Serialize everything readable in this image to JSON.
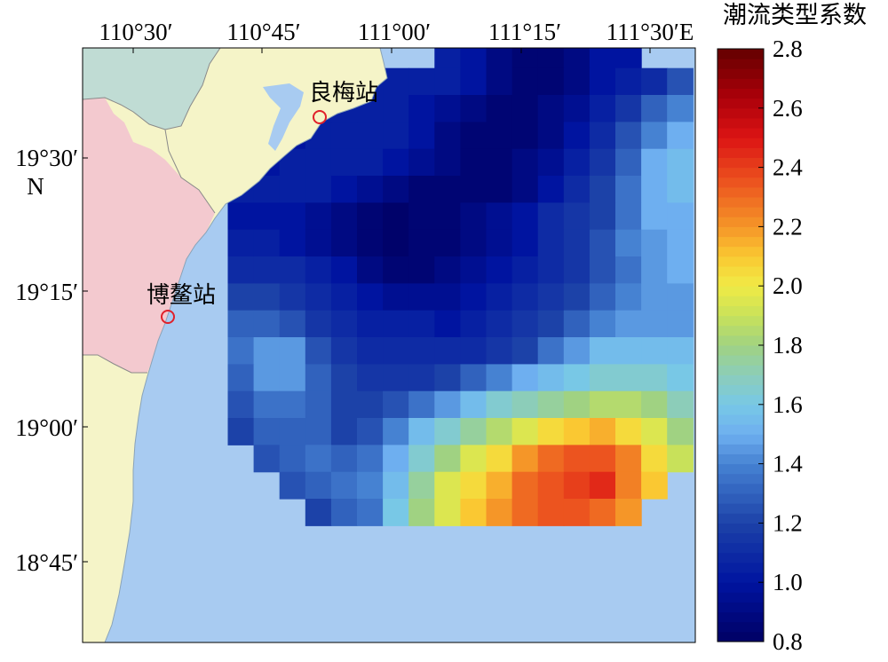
{
  "figure": {
    "colorbar_title": "潮流类型系数",
    "colorbar_ticks": [
      "0.8",
      "1.0",
      "1.2",
      "1.4",
      "1.6",
      "1.8",
      "2.0",
      "2.2",
      "2.4",
      "2.6",
      "2.8"
    ],
    "colorbar_range": [
      0.8,
      2.8
    ],
    "lon_labels": [
      "110°30′",
      "110°45′",
      "111°00′",
      "111°15′",
      "111°30′E"
    ],
    "lat_labels": [
      "19°30′",
      "19°15′",
      "19°00′",
      "18°45′"
    ],
    "lat_axis_letter": "N",
    "stations": [
      {
        "name": "良梅站",
        "lon": 110.77,
        "lat": 19.61
      },
      {
        "name": "博鳌站",
        "lon": 110.62,
        "lat": 19.2
      }
    ],
    "colors": {
      "sea": "#a8cbf1",
      "land_hainan": "#f5f4c8",
      "land_west": "#f3c9cf",
      "land_nw": "#c0dcd4",
      "station": "#e0202a"
    }
  },
  "chart_data": {
    "type": "heatmap",
    "colorbar_title": "潮流类型系数",
    "vmin": 0.8,
    "vmax": 2.8,
    "grid_lon_start": 110.633,
    "grid_lat_top": 19.717,
    "cell_size_deg": 0.05,
    "rows": [
      [
        null,
        null,
        null,
        null,
        null,
        null,
        null,
        null,
        null,
        1.05,
        1.0,
        0.9,
        0.85,
        0.85,
        0.9,
        1.0,
        1.0,
        null,
        null
      ],
      [
        null,
        null,
        null,
        null,
        null,
        null,
        1.05,
        1.05,
        1.05,
        1.05,
        1.0,
        0.9,
        0.85,
        0.85,
        0.9,
        1.0,
        1.05,
        1.1,
        1.25
      ],
      [
        null,
        null,
        null,
        1.0,
        1.05,
        1.05,
        1.05,
        1.05,
        1.0,
        0.95,
        0.9,
        0.85,
        0.85,
        0.9,
        0.95,
        1.05,
        1.15,
        1.3,
        1.4
      ],
      [
        null,
        null,
        null,
        1.0,
        1.05,
        1.05,
        1.05,
        1.05,
        1.0,
        0.9,
        0.85,
        0.85,
        0.85,
        0.9,
        1.0,
        1.1,
        1.25,
        1.4,
        1.5
      ],
      [
        null,
        null,
        1.0,
        1.05,
        1.05,
        1.05,
        1.05,
        1.0,
        0.95,
        0.9,
        0.85,
        0.85,
        0.9,
        0.95,
        1.05,
        1.15,
        1.3,
        1.5,
        1.55
      ],
      [
        null,
        1.05,
        1.05,
        1.05,
        1.05,
        1.0,
        0.95,
        0.9,
        0.85,
        0.85,
        0.85,
        0.85,
        0.9,
        1.0,
        1.1,
        1.2,
        1.35,
        1.5,
        1.55
      ],
      [
        null,
        1.0,
        1.0,
        1.0,
        0.95,
        0.9,
        0.85,
        0.82,
        0.85,
        0.85,
        0.9,
        0.95,
        1.0,
        1.1,
        1.15,
        1.2,
        1.35,
        1.5,
        1.5
      ],
      [
        null,
        1.05,
        1.05,
        1.0,
        0.95,
        0.9,
        0.85,
        0.82,
        0.85,
        0.85,
        0.9,
        0.95,
        1.0,
        1.1,
        1.15,
        1.25,
        1.4,
        1.45,
        1.5
      ],
      [
        null,
        1.1,
        1.1,
        1.1,
        1.05,
        1.0,
        0.9,
        0.85,
        0.85,
        0.9,
        0.95,
        1.0,
        1.05,
        1.1,
        1.15,
        1.25,
        1.35,
        1.45,
        1.5
      ],
      [
        null,
        1.2,
        1.2,
        1.15,
        1.1,
        1.05,
        1.0,
        0.95,
        0.95,
        0.95,
        1.0,
        1.05,
        1.1,
        1.15,
        1.2,
        1.3,
        1.4,
        1.45,
        1.45
      ],
      [
        null,
        1.3,
        1.3,
        1.25,
        1.15,
        1.1,
        1.05,
        1.05,
        1.05,
        1.0,
        1.05,
        1.1,
        1.15,
        1.2,
        1.3,
        1.4,
        1.45,
        1.45,
        1.45
      ],
      [
        null,
        1.35,
        1.45,
        1.45,
        1.25,
        1.15,
        1.1,
        1.1,
        1.1,
        1.1,
        1.1,
        1.15,
        1.2,
        1.35,
        1.45,
        1.55,
        1.55,
        1.55,
        1.55
      ],
      [
        null,
        1.3,
        1.45,
        1.45,
        1.3,
        1.2,
        1.15,
        1.15,
        1.15,
        1.2,
        1.3,
        1.4,
        1.5,
        1.55,
        1.6,
        1.65,
        1.65,
        1.65,
        1.6
      ],
      [
        null,
        1.25,
        1.35,
        1.35,
        1.3,
        1.2,
        1.2,
        1.25,
        1.35,
        1.45,
        1.55,
        1.65,
        1.7,
        1.75,
        1.8,
        1.85,
        1.85,
        1.8,
        1.7
      ],
      [
        null,
        1.2,
        1.3,
        1.3,
        1.3,
        1.2,
        1.25,
        1.4,
        1.55,
        1.65,
        1.75,
        1.85,
        1.95,
        2.05,
        2.1,
        2.15,
        2.05,
        1.95,
        1.8
      ],
      [
        null,
        null,
        1.25,
        1.3,
        1.35,
        1.3,
        1.35,
        1.5,
        1.65,
        1.8,
        1.95,
        2.05,
        2.2,
        2.3,
        2.35,
        2.35,
        2.25,
        2.05,
        1.9
      ],
      [
        null,
        null,
        null,
        1.25,
        1.3,
        1.35,
        1.4,
        1.55,
        1.75,
        1.95,
        2.05,
        2.15,
        2.3,
        2.35,
        2.4,
        2.45,
        2.25,
        2.1,
        null
      ],
      [
        null,
        null,
        null,
        null,
        1.2,
        1.3,
        1.35,
        1.6,
        1.8,
        1.95,
        2.1,
        2.2,
        2.3,
        2.35,
        2.35,
        2.3,
        2.2,
        null,
        null
      ]
    ]
  }
}
